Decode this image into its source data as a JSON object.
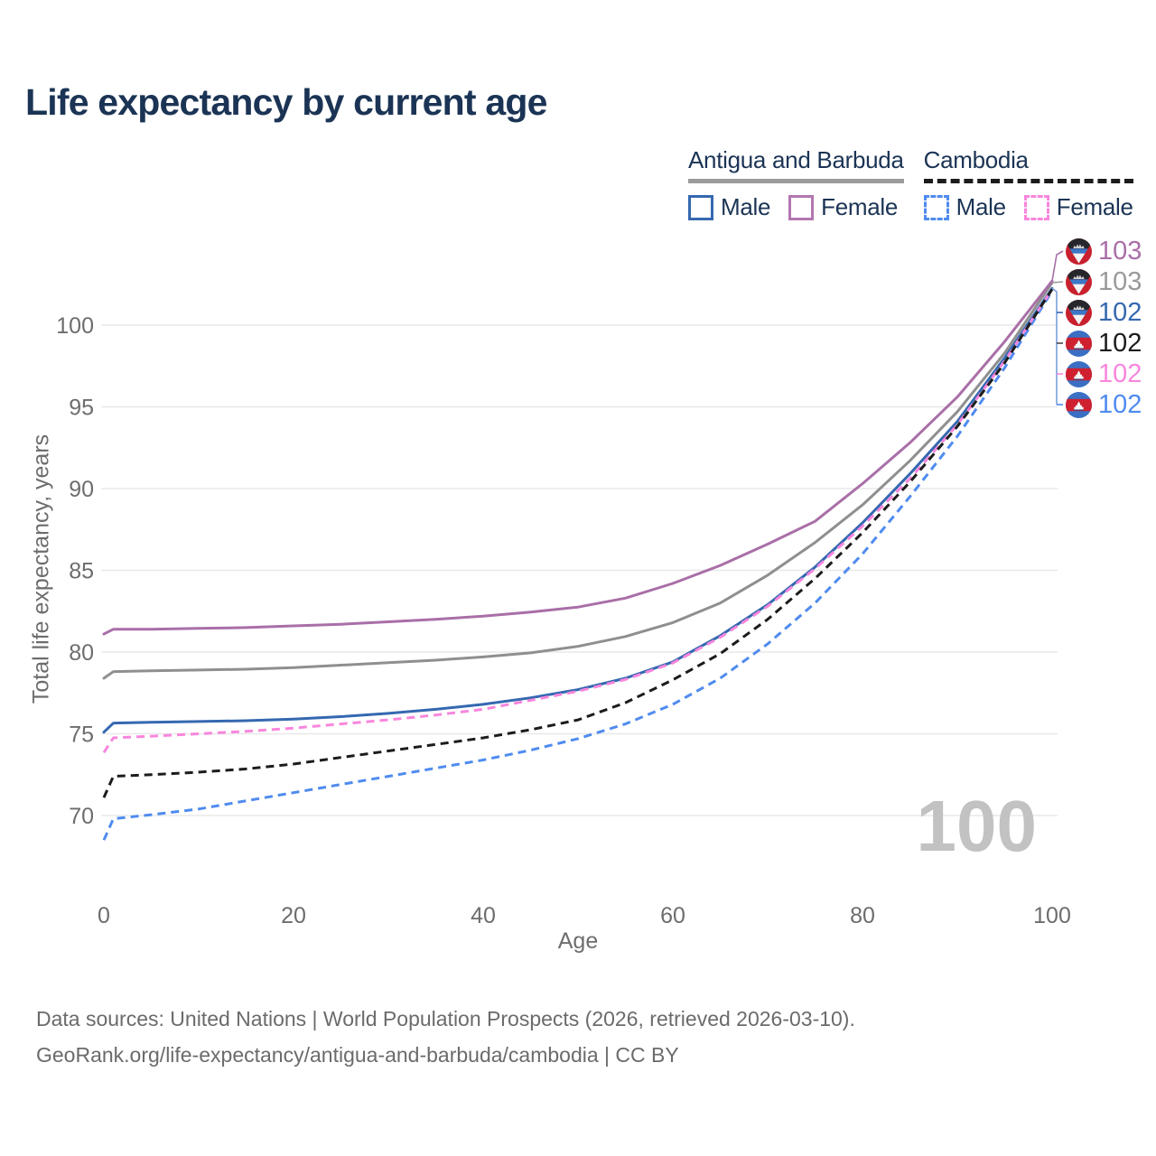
{
  "title": "Life expectancy by current age",
  "legend": {
    "groups": [
      {
        "label": "Antigua and Barbuda",
        "line_style": "solid",
        "line_color": "#9b9b9b",
        "items": [
          {
            "label": "Male",
            "color": "#3568b0",
            "dashed": false
          },
          {
            "label": "Female",
            "color": "#b277af",
            "dashed": false
          }
        ]
      },
      {
        "label": "Cambodia",
        "line_style": "dashed",
        "line_color": "#1c1c1c",
        "items": [
          {
            "label": "Male",
            "color": "#4f8bef",
            "dashed": true
          },
          {
            "label": "Female",
            "color": "#f886dd",
            "dashed": true
          }
        ]
      }
    ]
  },
  "chart_data": {
    "type": "line",
    "title": "Life expectancy by current age",
    "xlabel": "Age",
    "ylabel": "Total life expectancy, years",
    "x_ticks": [
      0,
      20,
      40,
      60,
      80,
      100
    ],
    "y_ticks": [
      70,
      75,
      80,
      85,
      90,
      95,
      100
    ],
    "xlim": [
      0,
      100
    ],
    "ylim": [
      68,
      103.5
    ],
    "grid": "horizontal-only",
    "legend_position": "top-right",
    "watermark_age": "100",
    "x": [
      0,
      1,
      5,
      10,
      15,
      20,
      25,
      30,
      35,
      40,
      45,
      50,
      55,
      60,
      65,
      70,
      75,
      80,
      85,
      90,
      95,
      100
    ],
    "series": [
      {
        "name": "Antigua and Barbuda — Total",
        "color": "#8f8f8f",
        "dashed": false,
        "end_label": "103",
        "values": [
          78.4,
          78.8,
          78.85,
          78.9,
          78.95,
          79.05,
          79.2,
          79.35,
          79.5,
          79.7,
          79.95,
          80.35,
          80.95,
          81.8,
          83.0,
          84.7,
          86.7,
          89.0,
          91.7,
          94.7,
          98.3,
          102.6
        ]
      },
      {
        "name": "Antigua and Barbuda — Female",
        "color": "#a96fa7",
        "dashed": false,
        "end_label": "103",
        "values": [
          81.1,
          81.4,
          81.4,
          81.45,
          81.5,
          81.6,
          81.7,
          81.85,
          82.0,
          82.2,
          82.45,
          82.75,
          83.3,
          84.2,
          85.3,
          86.6,
          88.0,
          90.3,
          92.8,
          95.6,
          99.0,
          102.7
        ]
      },
      {
        "name": "Antigua and Barbuda — Male",
        "color": "#3568b0",
        "dashed": false,
        "end_label": "102",
        "values": [
          75.1,
          75.65,
          75.7,
          75.75,
          75.8,
          75.9,
          76.05,
          76.25,
          76.5,
          76.8,
          77.2,
          77.7,
          78.4,
          79.4,
          81.0,
          82.9,
          85.2,
          87.9,
          90.9,
          94.1,
          98.0,
          102.25
        ]
      },
      {
        "name": "Cambodia — Male",
        "color": "#4f8bef",
        "dashed": true,
        "end_label": "102",
        "values": [
          68.5,
          69.8,
          70.05,
          70.4,
          70.9,
          71.4,
          71.9,
          72.4,
          72.9,
          73.4,
          74.0,
          74.7,
          75.6,
          76.8,
          78.4,
          80.5,
          83.0,
          86.0,
          89.5,
          93.2,
          97.4,
          102.1
        ]
      },
      {
        "name": "Cambodia — Female",
        "color": "#f886dd",
        "dashed": true,
        "end_label": "102",
        "values": [
          73.85,
          74.75,
          74.85,
          75.0,
          75.15,
          75.35,
          75.6,
          75.85,
          76.15,
          76.5,
          77.05,
          77.6,
          78.32,
          79.33,
          80.9,
          82.8,
          85.1,
          87.7,
          90.6,
          93.9,
          97.8,
          102.2
        ]
      },
      {
        "name": "Cambodia — Total",
        "color": "#1c1c1c",
        "dashed": true,
        "end_label": "102",
        "values": [
          71.1,
          72.4,
          72.5,
          72.65,
          72.85,
          73.15,
          73.55,
          73.95,
          74.35,
          74.75,
          75.25,
          75.85,
          76.9,
          78.3,
          79.9,
          82.0,
          84.5,
          87.3,
          90.4,
          93.8,
          97.7,
          102.2
        ]
      }
    ],
    "end_labels": [
      {
        "text": "103",
        "flag": "antigua-and-barbuda",
        "color": "#a96fa7",
        "series": "Antigua and Barbuda — Female"
      },
      {
        "text": "103",
        "flag": "antigua-and-barbuda",
        "color": "#9a9a9a",
        "series": "Antigua and Barbuda — Total"
      },
      {
        "text": "102",
        "flag": "antigua-and-barbuda",
        "color": "#3568b0",
        "series": "Antigua and Barbuda — Male"
      },
      {
        "text": "102",
        "flag": "cambodia",
        "color": "#1c1c1c",
        "series": "Cambodia — Total"
      },
      {
        "text": "102",
        "flag": "cambodia",
        "color": "#f886dd",
        "series": "Cambodia — Female"
      },
      {
        "text": "102",
        "flag": "cambodia",
        "color": "#4f8bef",
        "series": "Cambodia — Male"
      }
    ]
  },
  "footer": {
    "line1": "Data sources: United Nations | World Population Prospects (2026, retrieved 2026-03-10).",
    "line2": "GeoRank.org/life-expectancy/antigua-and-barbuda/cambodia | CC BY"
  }
}
